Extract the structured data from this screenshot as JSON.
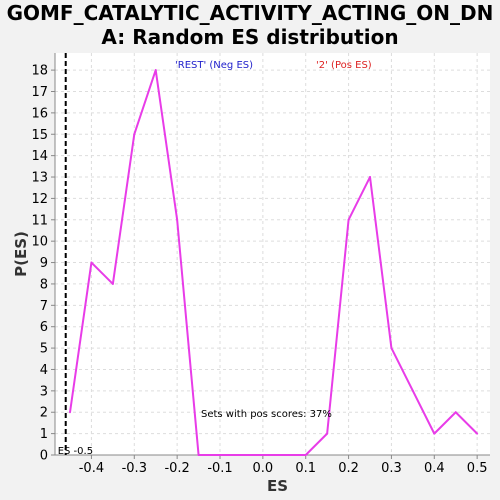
{
  "chart_data": {
    "type": "line",
    "title_line1": "GOMF_CATALYTIC_ACTIVITY_ACTING_ON_DN",
    "title_line2": "A: Random ES distribution",
    "xlabel": "ES",
    "ylabel": "P(ES)",
    "xlim": [
      -0.485,
      0.53
    ],
    "ylim": [
      0,
      18.8
    ],
    "xticks": [
      -0.4,
      -0.3,
      -0.2,
      -0.1,
      0.0,
      0.1,
      0.2,
      0.3,
      0.4,
      0.5
    ],
    "xtick_labels": [
      "-0.4",
      "-0.3",
      "-0.2",
      "-0.1",
      "0.0",
      "0.1",
      "0.2",
      "0.3",
      "0.4",
      "0.5"
    ],
    "yticks": [
      0,
      1,
      2,
      3,
      4,
      5,
      6,
      7,
      8,
      9,
      10,
      11,
      12,
      13,
      14,
      15,
      16,
      17,
      18
    ],
    "grid": true,
    "series": [
      {
        "color": "#e83ce8",
        "x": [
          -0.45,
          -0.4,
          -0.35,
          -0.3,
          -0.25,
          -0.2,
          -0.15,
          -0.1,
          -0.05,
          0.0,
          0.05,
          0.1,
          0.15,
          0.2,
          0.25,
          0.3,
          0.35,
          0.4,
          0.45,
          0.5
        ],
        "y": [
          2,
          9,
          8,
          15,
          18,
          11,
          0,
          0,
          0,
          0,
          0,
          0,
          1,
          11,
          13,
          5,
          3,
          1,
          2,
          1
        ]
      }
    ],
    "es_marker": {
      "x": -0.46,
      "label": "ES -0.5"
    },
    "annotations": {
      "neg_label": "'REST' (Neg ES)",
      "neg_color": "#2222cc",
      "pos_label": "'2' (Pos ES)",
      "pos_color": "#dd2222",
      "sets_text": "Sets with pos scores: 37%"
    }
  }
}
